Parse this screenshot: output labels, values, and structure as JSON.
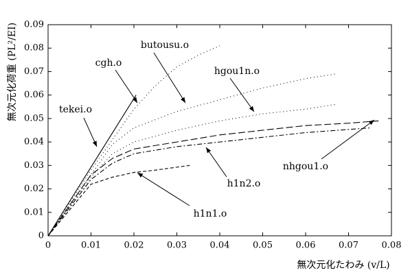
{
  "chart_data": {
    "type": "line",
    "x_label": "無次元化たわみ (v/L)",
    "y_label": "無次元化荷重 (PL²/EI)",
    "xlim": [
      0,
      0.08
    ],
    "ylim": [
      0,
      0.09
    ],
    "xticks": [
      0,
      0.01,
      0.02,
      0.03,
      0.04,
      0.05,
      0.06,
      0.07,
      0.08
    ],
    "yticks": [
      0,
      0.01,
      0.02,
      0.03,
      0.04,
      0.05,
      0.06,
      0.07,
      0.08,
      0.09
    ],
    "series": [
      {
        "name": "tekei.o",
        "color": "#000000",
        "style": "solid",
        "x": [
          0,
          0.0205
        ],
        "values": [
          0,
          0.06
        ]
      },
      {
        "name": "cgh.o",
        "color": "#000000",
        "style": "dotted",
        "x": [
          0,
          0.01,
          0.02,
          0.025,
          0.03,
          0.035,
          0.04
        ],
        "values": [
          0,
          0.028,
          0.054,
          0.064,
          0.072,
          0.077,
          0.081
        ]
      },
      {
        "name": "butousu.o",
        "color": "#000000",
        "style": "dotted",
        "x": [
          0,
          0.01,
          0.015,
          0.02,
          0.03,
          0.04,
          0.05,
          0.06,
          0.067
        ],
        "values": [
          0,
          0.026,
          0.039,
          0.046,
          0.053,
          0.058,
          0.063,
          0.067,
          0.069
        ]
      },
      {
        "name": "hgou1n.o",
        "color": "#000000",
        "style": "dotted",
        "x": [
          0,
          0.01,
          0.015,
          0.02,
          0.03,
          0.04,
          0.05,
          0.06,
          0.067
        ],
        "values": [
          0,
          0.025,
          0.035,
          0.04,
          0.045,
          0.049,
          0.052,
          0.054,
          0.056
        ]
      },
      {
        "name": "nhgou1.o",
        "color": "#000000",
        "style": "longdash",
        "x": [
          0,
          0.01,
          0.015,
          0.02,
          0.03,
          0.04,
          0.05,
          0.06,
          0.07,
          0.077
        ],
        "values": [
          0,
          0.026,
          0.033,
          0.037,
          0.04,
          0.043,
          0.045,
          0.047,
          0.048,
          0.049
        ]
      },
      {
        "name": "h1n2.o",
        "color": "#000000",
        "style": "dashdot",
        "x": [
          0,
          0.01,
          0.015,
          0.02,
          0.03,
          0.04,
          0.05,
          0.06,
          0.075
        ],
        "values": [
          0,
          0.024,
          0.031,
          0.035,
          0.038,
          0.04,
          0.042,
          0.044,
          0.046
        ]
      },
      {
        "name": "h1n1.o",
        "color": "#000000",
        "style": "dashed",
        "x": [
          0,
          0.01,
          0.015,
          0.02,
          0.025,
          0.033
        ],
        "values": [
          0,
          0.022,
          0.025,
          0.027,
          0.028,
          0.03
        ]
      }
    ]
  }
}
